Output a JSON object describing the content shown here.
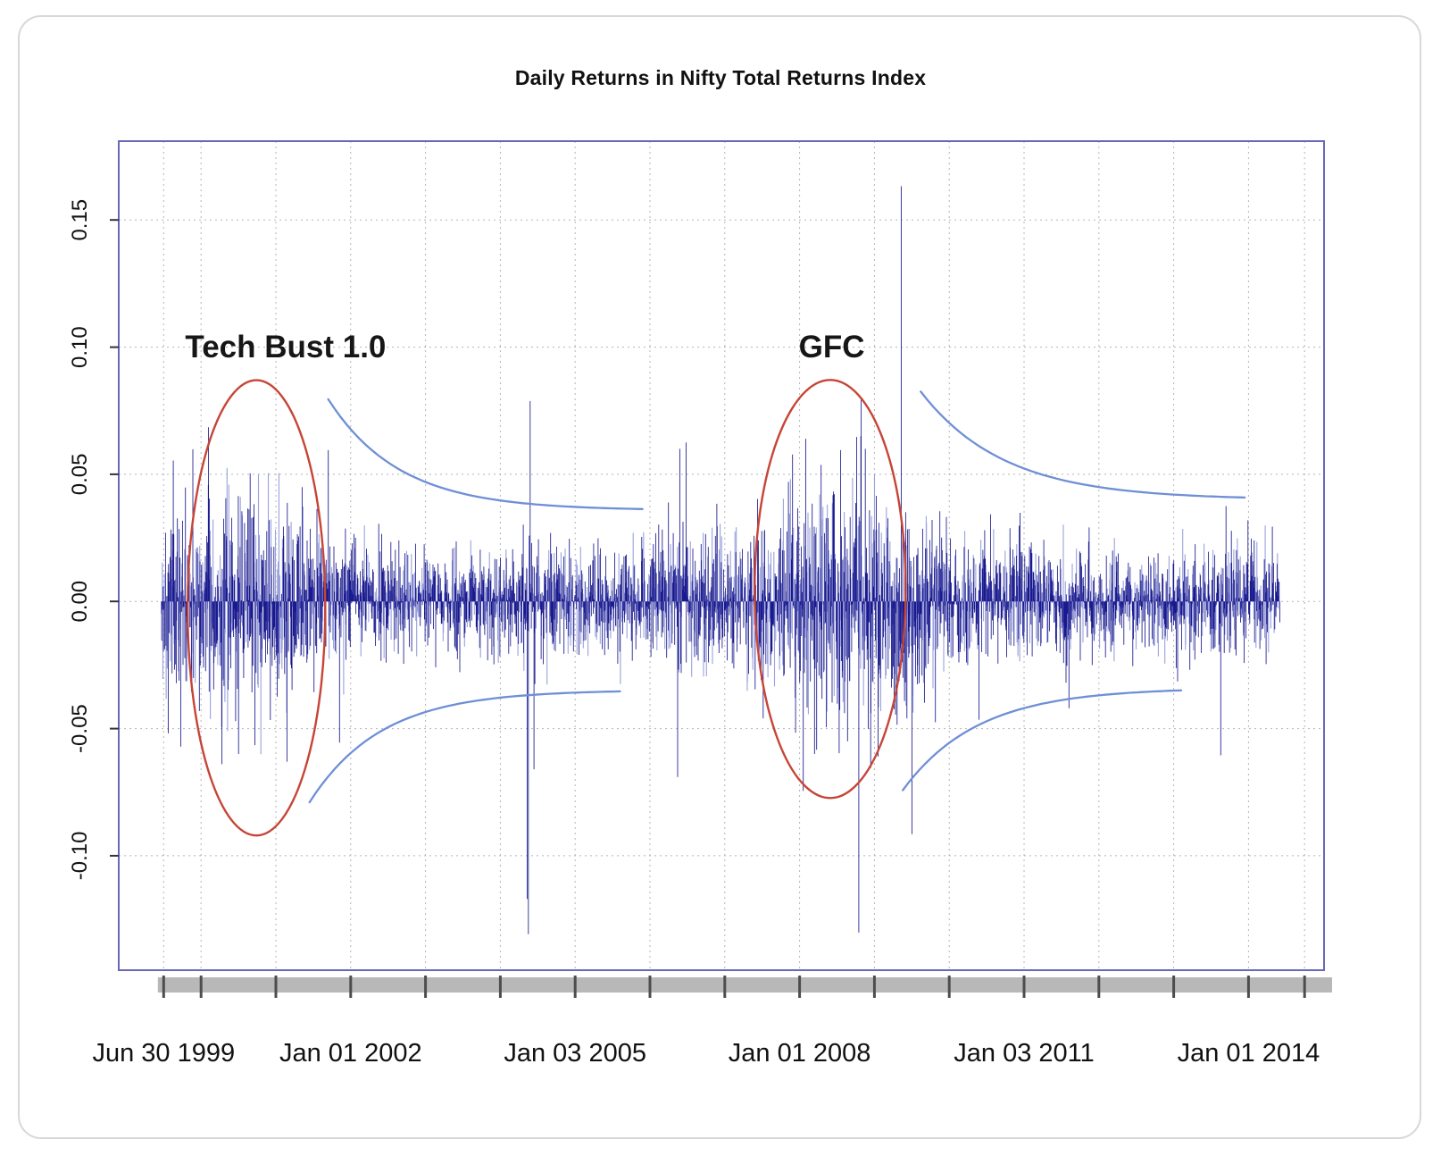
{
  "card": {
    "border_color": "#d8d8d8",
    "background": "#ffffff"
  },
  "chart_data": {
    "type": "bar",
    "title": "Daily Returns in Nifty Total Returns Index",
    "xlabel": "",
    "ylabel": "",
    "x_tick_labels": [
      "Jun 30 1999",
      "Jan 01 2002",
      "Jan 03 2005",
      "Jan 01 2008",
      "Jan 03 2011",
      "Jan 01 2014"
    ],
    "x_tick_positions": [
      1999.5,
      2002.0,
      2005.0,
      2008.0,
      2011.0,
      2014.0
    ],
    "grid_x_positions": [
      1999.5,
      2000,
      2001,
      2002,
      2003,
      2004,
      2005,
      2006,
      2007,
      2008,
      2009,
      2010,
      2011,
      2012,
      2013,
      2014,
      2014.75
    ],
    "y_ticks": [
      0.15,
      0.1,
      0.05,
      0.0,
      -0.05,
      -0.1
    ],
    "y_tick_labels": [
      "0.15",
      "0.10",
      "0.05",
      "0.00",
      "-0.05",
      "-0.10"
    ],
    "x_range": [
      1998.9,
      2015.01
    ],
    "y_range": [
      -0.145,
      0.181
    ],
    "grid": true,
    "legend": null,
    "colors": {
      "series": "#1a1a8f",
      "series_halo": "#9aa2dc",
      "grid": "#b5b5b5",
      "box": "#6868b8",
      "envelope": "#6f8fd6",
      "annotation": "#c64536",
      "annotation_text": "#161616",
      "axis_band": "#b8b8b8",
      "axis_tick": "#4d4d4d",
      "tick_label": "#111111"
    },
    "annotations": [
      {
        "label": "Tech Bust 1.0",
        "label_x": 2001.13,
        "label_y": 0.096,
        "ellipse": {
          "cx": 2000.74,
          "cy": -0.0025,
          "rx": 0.92,
          "ry": 0.0895
        }
      },
      {
        "label": "GFC",
        "label_x": 2008.43,
        "label_y": 0.096,
        "ellipse": {
          "cx": 2008.41,
          "cy": 0.0049,
          "rx": 1.01,
          "ry": 0.0822
        }
      }
    ],
    "envelopes": [
      {
        "x_start": 2001.7,
        "x_end": 2005.9,
        "y_start": 0.0795,
        "y_end": 0.0358,
        "decay": 1.05
      },
      {
        "x_start": 2001.45,
        "x_end": 2005.6,
        "y_start": -0.079,
        "y_end": -0.0348,
        "decay": 1.05
      },
      {
        "x_start": 2009.62,
        "x_end": 2013.95,
        "y_start": 0.0825,
        "y_end": 0.04,
        "decay": 0.9
      },
      {
        "x_start": 2009.38,
        "x_end": 2013.1,
        "y_start": -0.0742,
        "y_end": -0.034,
        "decay": 1.0
      }
    ],
    "returns_model": {
      "seed": 20140101,
      "t_start": 1999.47,
      "t_end": 2014.42,
      "points_per_year": 252,
      "clamp_sigmas": 3.1,
      "light_fraction": 0.32,
      "volatility_profile": [
        [
          1999.47,
          0.017
        ],
        [
          2000.2,
          0.021
        ],
        [
          2000.8,
          0.021
        ],
        [
          2001.3,
          0.017
        ],
        [
          2002.0,
          0.011
        ],
        [
          2003.0,
          0.009
        ],
        [
          2004.0,
          0.01
        ],
        [
          2004.6,
          0.012
        ],
        [
          2005.2,
          0.009
        ],
        [
          2006.0,
          0.012
        ],
        [
          2006.5,
          0.015
        ],
        [
          2007.0,
          0.013
        ],
        [
          2007.7,
          0.016
        ],
        [
          2008.1,
          0.022
        ],
        [
          2008.8,
          0.026
        ],
        [
          2009.5,
          0.02
        ],
        [
          2010.0,
          0.013
        ],
        [
          2011.0,
          0.012
        ],
        [
          2012.0,
          0.009
        ],
        [
          2013.0,
          0.01
        ],
        [
          2013.8,
          0.012
        ],
        [
          2014.42,
          0.009
        ]
      ],
      "spikes": [
        [
          2000.1,
          0.0685
        ],
        [
          2000.28,
          -0.064
        ],
        [
          2000.5,
          -0.06
        ],
        [
          2000.72,
          -0.0565
        ],
        [
          2001.15,
          -0.063
        ],
        [
          2001.7,
          0.0595
        ],
        [
          2001.85,
          -0.0555
        ],
        [
          2004.36,
          -0.117
        ],
        [
          2004.375,
          -0.1308
        ],
        [
          2004.4,
          0.0788
        ],
        [
          2004.45,
          -0.066
        ],
        [
          2006.37,
          -0.069
        ],
        [
          2006.4,
          0.06
        ],
        [
          2006.48,
          0.0625
        ],
        [
          2007.85,
          0.047
        ],
        [
          2008.05,
          -0.0745
        ],
        [
          2008.08,
          0.064
        ],
        [
          2008.2,
          -0.06
        ],
        [
          2008.55,
          0.0595
        ],
        [
          2008.79,
          -0.1302
        ],
        [
          2008.82,
          0.065
        ],
        [
          2008.88,
          0.06
        ],
        [
          2008.95,
          -0.0655
        ],
        [
          2009.05,
          -0.061
        ],
        [
          2009.36,
          0.1633
        ],
        [
          2009.5,
          -0.0915
        ],
        [
          2010.4,
          -0.0465
        ],
        [
          2011.6,
          -0.042
        ],
        [
          2013.63,
          -0.0605
        ],
        [
          2013.7,
          0.0375
        ]
      ]
    }
  }
}
